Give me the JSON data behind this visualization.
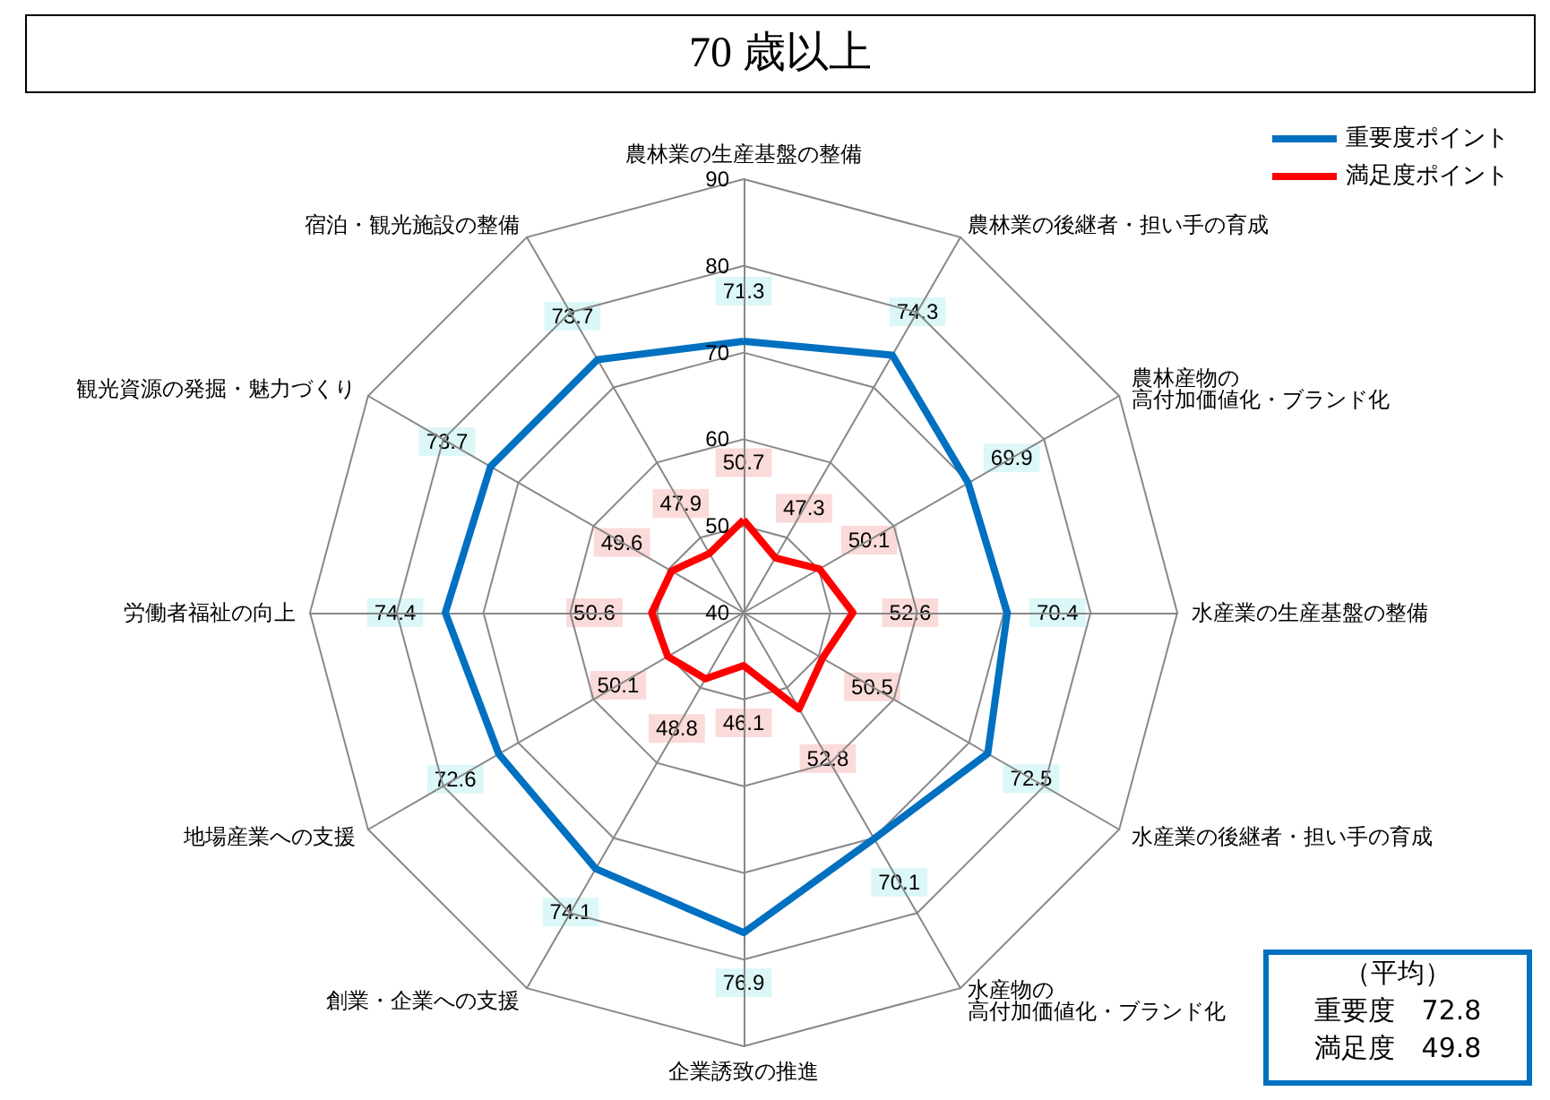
{
  "chart_data": {
    "type": "radar",
    "title": "70 歳以上",
    "categories": [
      "農林業の生産基盤の整備",
      "農林業の後継者・担い手の育成",
      "農林産物の高付加価値化・ブランド化",
      "水産業の生産基盤の整備",
      "水産業の後継者・担い手の育成",
      "水産物の高付加価値化・ブランド化",
      "企業誘致の推進",
      "創業・企業への支援",
      "地場産業への支援",
      "労働者福祉の向上",
      "観光資源の発掘・魅力づくり",
      "宿泊・観光施設の整備"
    ],
    "series": [
      {
        "name": "重要度ポイント",
        "color": "#0070c0",
        "values": [
          71.3,
          74.3,
          69.9,
          70.4,
          72.5,
          70.1,
          76.9,
          74.1,
          72.6,
          74.4,
          73.7,
          73.7
        ]
      },
      {
        "name": "満足度ポイント",
        "color": "#ff0000",
        "values": [
          50.7,
          47.3,
          50.1,
          52.6,
          50.5,
          52.8,
          46.1,
          48.8,
          50.1,
          50.6,
          49.6,
          47.9
        ]
      }
    ],
    "ylim": [
      40,
      90
    ],
    "yticks": [
      40,
      50,
      60,
      70,
      80,
      90
    ],
    "data_labels": true,
    "legend": "top right",
    "marker": "none",
    "annotations": [
      "（平均）",
      "重要度　72.8",
      "満足度　49.8"
    ]
  }
}
